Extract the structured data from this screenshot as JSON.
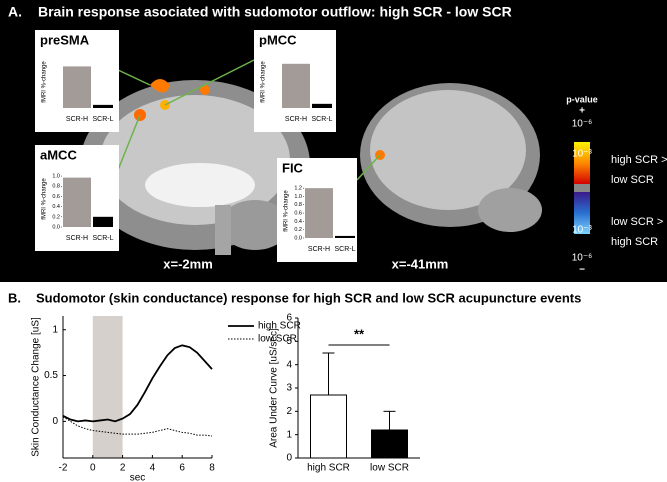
{
  "panel_a": {
    "label": "A.",
    "title": "Brain response asociated with sudomotor outflow: high SCR - low SCR",
    "view_labels": [
      "x=-2mm",
      "x=-41mm"
    ],
    "colorbar": {
      "title": "p-value",
      "plus": "+",
      "minus": "−",
      "tick_labels": [
        "10⁻⁶",
        "10⁻³",
        "10⁻³",
        "10⁻⁶"
      ],
      "upper_text": [
        "high SCR >",
        "low SCR"
      ],
      "lower_text": [
        "low SCR >",
        "high SCR"
      ]
    }
  },
  "panel_b": {
    "label": "B.",
    "title": "Sudomotor (skin conductance) response for high SCR and low SCR acupuncture events"
  },
  "chart_data": [
    {
      "type": "bar",
      "title": "preSMA",
      "y_label": "fMRI %-change",
      "categories": [
        "SCR-H",
        "SCR-L"
      ],
      "values": [
        0.8,
        0.06
      ],
      "colors": [
        "#a39b97",
        "#000000"
      ],
      "ylim": [
        0,
        1
      ]
    },
    {
      "type": "bar",
      "title": "pMCC",
      "y_label": "fMRI %-change",
      "categories": [
        "SCR-H",
        "SCR-L"
      ],
      "values": [
        0.85,
        0.08
      ],
      "colors": [
        "#a39b97",
        "#000000"
      ],
      "ylim": [
        0,
        1
      ]
    },
    {
      "type": "bar",
      "title": "aMCC",
      "y_label": "fMRI %-change",
      "categories": [
        "SCR-H",
        "SCR-L"
      ],
      "values": [
        0.97,
        0.2
      ],
      "colors": [
        "#a39b97",
        "#000000"
      ],
      "ylim": [
        0,
        1.1
      ],
      "yticks": [
        {
          "value": 0,
          "label": "0.0"
        },
        0.2,
        0.4,
        0.6,
        0.8,
        {
          "value": 1,
          "label": "1.0"
        }
      ]
    },
    {
      "type": "bar",
      "title": "FIC",
      "y_label": "fMRI %-change",
      "categories": [
        "SCR-H",
        "SCR-L"
      ],
      "values": [
        1.2,
        0.05
      ],
      "colors": [
        "#a39b97",
        "#000000"
      ],
      "ylim": [
        0,
        1.3
      ],
      "yticks": [
        {
          "value": 0,
          "label": "0.0"
        },
        0.2,
        0.4,
        0.6,
        0.8,
        {
          "value": 1,
          "label": "1.0"
        },
        1.2
      ]
    },
    {
      "type": "line",
      "x_label": "sec",
      "y_label": "Skin Conductance Change [uS]",
      "x": [
        -2,
        -1.5,
        -1,
        -0.5,
        0,
        0.5,
        1,
        1.5,
        2,
        2.5,
        3,
        3.5,
        4,
        4.5,
        5,
        5.5,
        6,
        6.5,
        7,
        7.5,
        8
      ],
      "series": [
        {
          "name": "high SCR",
          "color": "#000000",
          "dash": "solid",
          "values": [
            0.06,
            0.02,
            0.0,
            0.01,
            0.0,
            0.01,
            0.02,
            0.0,
            0.03,
            0.08,
            0.18,
            0.32,
            0.47,
            0.6,
            0.72,
            0.8,
            0.83,
            0.81,
            0.75,
            0.66,
            0.57
          ]
        },
        {
          "name": "low SCR",
          "color": "#000000",
          "dash": "dotted",
          "values": [
            0.05,
            0.0,
            -0.05,
            -0.08,
            -0.1,
            -0.11,
            -0.12,
            -0.13,
            -0.14,
            -0.14,
            -0.14,
            -0.13,
            -0.12,
            -0.1,
            -0.08,
            -0.1,
            -0.12,
            -0.13,
            -0.15,
            -0.15,
            -0.16
          ]
        }
      ],
      "xlim": [
        -2,
        8
      ],
      "xticks": [
        -2,
        0,
        2,
        4,
        6,
        8
      ],
      "ylim": [
        -0.4,
        1.15
      ],
      "yticks": [
        0,
        0.5,
        1
      ],
      "shaded_x": [
        0,
        2
      ],
      "legend": "upper right"
    },
    {
      "type": "bar",
      "y_label": "Area Under Curve [uS/sec]",
      "categories": [
        "high SCR",
        "low SCR"
      ],
      "values": [
        2.7,
        1.2
      ],
      "errors": [
        1.8,
        0.8
      ],
      "colors": [
        "#ffffff",
        "#000000"
      ],
      "ylim": [
        0,
        6
      ],
      "yticks": [
        0,
        1,
        2,
        3,
        4,
        5,
        6
      ],
      "annotation": "**"
    }
  ]
}
